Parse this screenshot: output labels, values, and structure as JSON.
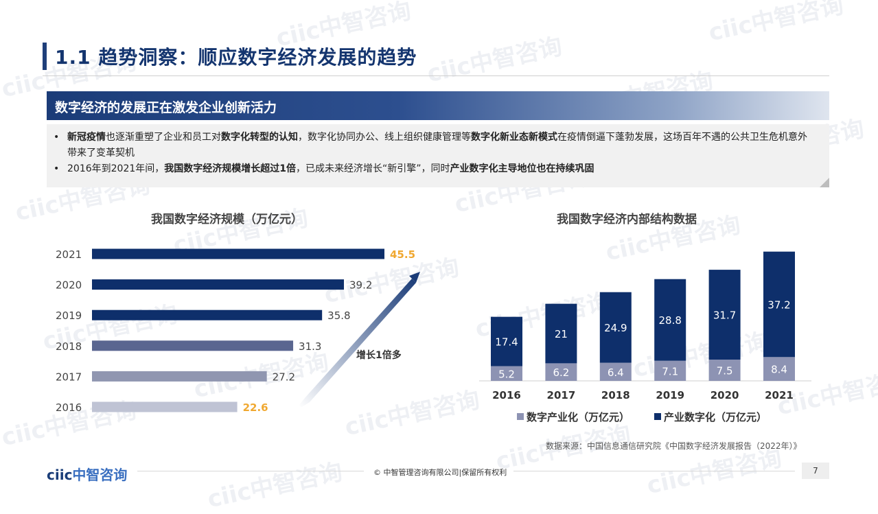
{
  "header": {
    "title": "1.1 趋势洞察：顺应数字经济发展的趋势"
  },
  "banner": {
    "text": "数字经济的发展正在激发企业创新活力"
  },
  "bullets": [
    [
      {
        "text": "新冠疫情",
        "bold": true
      },
      {
        "text": "也逐渐重塑了企业和员工对",
        "bold": false
      },
      {
        "text": "数字化转型的认知",
        "bold": true
      },
      {
        "text": "，数字化协同办公、线上组织健康管理等",
        "bold": false
      },
      {
        "text": "数字化新业态新模式",
        "bold": true
      },
      {
        "text": "在疫情倒逼下蓬勃发展，这场百年不遇的公共卫生危机意外带来了变革契机",
        "bold": false
      }
    ],
    [
      {
        "text": "2016年到2021年间，",
        "bold": false
      },
      {
        "text": "我国数字经济规模增长超过1倍",
        "bold": true
      },
      {
        "text": "，已成未来经济增长“新引擎”，同时",
        "bold": false
      },
      {
        "text": "产业数字化主导地位也在持续巩固",
        "bold": true
      }
    ]
  ],
  "chart_data": [
    {
      "type": "bar",
      "orientation": "horizontal",
      "title": "我国数字经济规模（万亿元）",
      "categories": [
        "2021",
        "2020",
        "2019",
        "2018",
        "2017",
        "2016"
      ],
      "values": [
        45.5,
        39.2,
        35.8,
        31.3,
        27.2,
        22.6
      ],
      "value_labels": [
        "45.5",
        "39.2",
        "35.8",
        "31.3",
        "27.2",
        "22.6"
      ],
      "bar_colors": [
        "#0e2f6b",
        "#0e2f6b",
        "#0e2f6b",
        "#5a6690",
        "#9096b0",
        "#bfc3d4"
      ],
      "label_colors": [
        "#f0a830",
        "#444444",
        "#444444",
        "#444444",
        "#444444",
        "#f0a830"
      ],
      "annotation": "增长1倍多",
      "xlim": [
        0,
        50
      ]
    },
    {
      "type": "bar",
      "stacked": true,
      "title": "我国数字经济内部结构数据",
      "categories": [
        "2016",
        "2017",
        "2018",
        "2019",
        "2020",
        "2021"
      ],
      "series": [
        {
          "name": "数字产业化（万亿元）",
          "values": [
            5.2,
            6.2,
            6.4,
            7.1,
            7.5,
            8.4
          ],
          "labels": [
            "5.2",
            "6.2",
            "6.4",
            "7.1",
            "7.5",
            "8.4"
          ],
          "color": "#8d93b3"
        },
        {
          "name": "产业数字化（万亿元）",
          "values": [
            17.4,
            21,
            24.9,
            28.8,
            31.7,
            37.2
          ],
          "labels": [
            "17.4",
            "21",
            "24.9",
            "28.8",
            "31.7",
            "37.2"
          ],
          "color": "#0e2f6b"
        }
      ],
      "legend": "bottom",
      "ylim": [
        0,
        46
      ]
    }
  ],
  "source": "数据来源：中国信息通信研究院《中国数字经济发展报告（2022年）》",
  "footer": {
    "logo_a": "ciic",
    "logo_b": "中智咨询",
    "copyright": "© 中智管理咨询有限公司|保留所有权利",
    "page": "7"
  },
  "watermark": "ciic中智咨询"
}
